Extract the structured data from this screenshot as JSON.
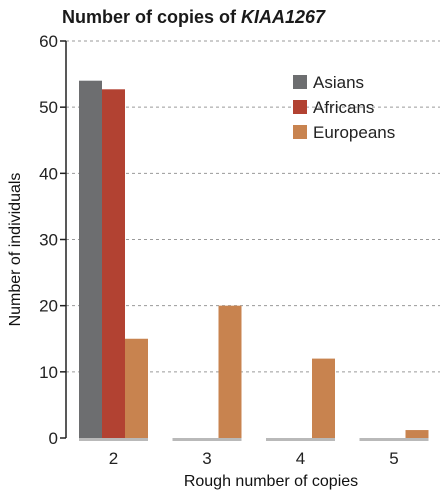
{
  "chart_data": {
    "type": "bar",
    "title_prefix": "Number of copies of ",
    "title_gene": "KIAA1267",
    "xlabel": "Rough number of copies",
    "ylabel": "Number of individuals",
    "categories": [
      "2",
      "3",
      "4",
      "5"
    ],
    "ylim": [
      0,
      60
    ],
    "yticks": [
      0,
      10,
      20,
      30,
      40,
      50,
      60
    ],
    "grid": true,
    "legend_position": "top-right",
    "series": [
      {
        "name": "Asians",
        "color": "#6d6e70",
        "values": [
          54,
          0,
          0,
          0
        ]
      },
      {
        "name": "Africans",
        "color": "#b24232",
        "values": [
          52.7,
          0,
          0,
          0
        ]
      },
      {
        "name": "Europeans",
        "color": "#c8834f",
        "values": [
          15,
          20,
          12,
          1.2
        ]
      }
    ]
  }
}
